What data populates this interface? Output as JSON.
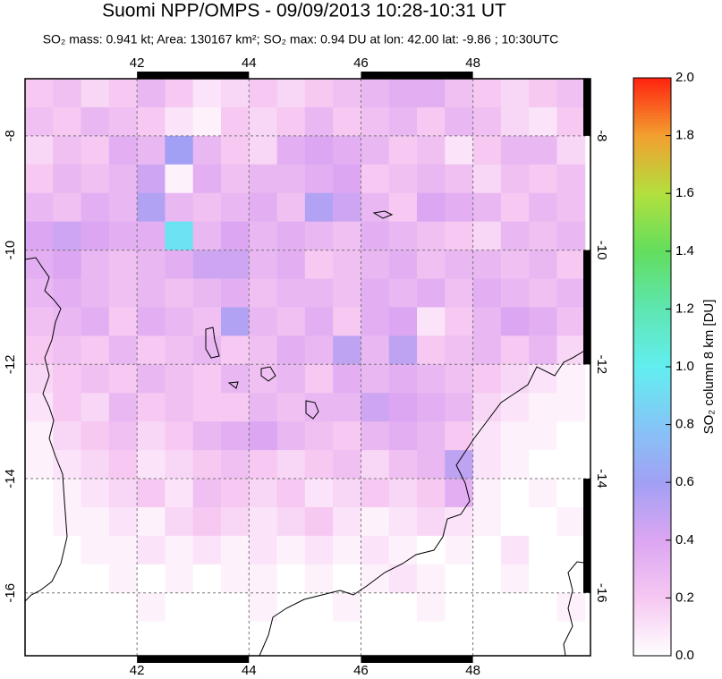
{
  "chart_data": {
    "type": "map",
    "title": "Suomi NPP/OMPS - 09/09/2013 10:28-10:31 UT",
    "subtitle": "SO₂ mass: 0.941 kt; Area: 130167 km²; SO₂ max: 0.94 DU at lon: 42.00 lat: -9.86 ; 10:30UTC",
    "colorbar_label": "SO₂ column 8 km [DU]",
    "xlim": [
      40,
      50.1
    ],
    "ylim": [
      -17.1,
      -7
    ],
    "xticks": [
      42,
      44,
      46,
      48
    ],
    "yticks": [
      -8,
      -10,
      -12,
      -14,
      -16
    ],
    "grid": true,
    "clim": [
      0,
      2
    ],
    "cticks": [
      {
        "value": 0,
        "label": "0.0"
      },
      0.2,
      0.4,
      0.6,
      0.8,
      {
        "value": 1,
        "label": "1.0"
      },
      1.2,
      1.4,
      1.6,
      1.8,
      {
        "value": 2,
        "label": "2.0"
      }
    ],
    "colormap": [
      "#ffffff",
      "#f6c8f2",
      "#dca6f2",
      "#a2a0f4",
      "#84c6f6",
      "#62eef0",
      "#5ee6b2",
      "#62de5e",
      "#b2e03e",
      "#f2a030",
      "#ff2410"
    ],
    "lons": [
      40.25,
      40.75,
      41.25,
      41.75,
      42.25,
      42.75,
      43.25,
      43.75,
      44.25,
      44.75,
      45.25,
      45.75,
      46.25,
      46.75,
      47.25,
      47.75,
      48.25,
      48.75,
      49.25,
      49.75
    ],
    "lats": [
      -7.25,
      -7.75,
      -8.25,
      -8.75,
      -9.25,
      -9.75,
      -10.25,
      -10.75,
      -11.25,
      -11.75,
      -12.25,
      -12.75,
      -13.25,
      -13.75,
      -14.25,
      -14.75,
      -15.25,
      -15.75,
      -16.25,
      -16.75
    ],
    "values": [
      [
        0.2,
        0.25,
        0.15,
        0.2,
        0.3,
        0.2,
        0.1,
        0.15,
        0.2,
        0.15,
        0.2,
        0.25,
        0.3,
        0.35,
        0.35,
        0.25,
        0.2,
        0.15,
        0.2,
        0.25
      ],
      [
        0.25,
        0.2,
        0.3,
        0.25,
        0.2,
        0.1,
        0.05,
        0.2,
        0.15,
        0.2,
        0.3,
        0.2,
        0.25,
        0.3,
        0.2,
        0.3,
        0.25,
        0.15,
        0.1,
        0.2
      ],
      [
        0.15,
        0.25,
        0.2,
        0.35,
        0.3,
        0.6,
        0.3,
        0.2,
        0.15,
        0.35,
        0.4,
        0.35,
        0.3,
        0.2,
        0.25,
        0.1,
        0.2,
        0.3,
        0.3,
        0.15
      ],
      [
        0.2,
        0.3,
        0.25,
        0.3,
        0.45,
        0.05,
        0.35,
        0.25,
        0.3,
        0.3,
        0.35,
        0.4,
        0.2,
        0.25,
        0.3,
        0.25,
        0.15,
        0.25,
        0.2,
        0.25
      ],
      [
        0.3,
        0.25,
        0.35,
        0.3,
        0.55,
        0.3,
        0.25,
        0.3,
        0.35,
        0.25,
        0.55,
        0.45,
        0.3,
        0.2,
        0.4,
        0.35,
        0.3,
        0.2,
        0.3,
        0.25
      ],
      [
        0.4,
        0.45,
        0.4,
        0.35,
        0.35,
        0.94,
        0.3,
        0.4,
        0.3,
        0.35,
        0.3,
        0.25,
        0.35,
        0.3,
        0.25,
        0.2,
        0.15,
        0.3,
        0.25,
        0.3
      ],
      [
        0.35,
        0.4,
        0.3,
        0.25,
        0.3,
        0.35,
        0.45,
        0.45,
        0.3,
        0.35,
        0.2,
        0.25,
        0.3,
        0.35,
        0.25,
        0.3,
        0.3,
        0.25,
        0.3,
        0.2
      ],
      [
        0.3,
        0.35,
        0.3,
        0.25,
        0.3,
        0.25,
        0.3,
        0.35,
        0.25,
        0.3,
        0.3,
        0.25,
        0.35,
        0.3,
        0.35,
        0.25,
        0.35,
        0.3,
        0.25,
        0.3
      ],
      [
        0.25,
        0.3,
        0.35,
        0.2,
        0.35,
        0.3,
        0.25,
        0.55,
        0.3,
        0.25,
        0.35,
        0.2,
        0.35,
        0.4,
        0.1,
        0.2,
        0.3,
        0.4,
        0.35,
        0.25
      ],
      [
        0.2,
        0.25,
        0.2,
        0.3,
        0.2,
        0.25,
        0.3,
        0.2,
        0.25,
        0.35,
        0.3,
        0.5,
        0.3,
        0.5,
        0.2,
        0.25,
        0.3,
        0.2,
        0.3,
        0.15
      ],
      [
        0.15,
        0.2,
        0.25,
        0.2,
        0.3,
        0.25,
        0.2,
        0.3,
        0.25,
        0.3,
        0.2,
        0.35,
        0.3,
        0.35,
        0.3,
        0.25,
        0.2,
        0.15,
        0.1,
        0.05
      ],
      [
        0.1,
        0.2,
        0.15,
        0.3,
        0.2,
        0.25,
        0.2,
        0.2,
        0.3,
        0.25,
        0.3,
        0.3,
        0.45,
        0.4,
        0.35,
        0.3,
        0.15,
        0.1,
        0.05,
        0.05
      ],
      [
        0.05,
        0.15,
        0.2,
        0.25,
        0.15,
        0.2,
        0.3,
        0.35,
        0.4,
        0.3,
        0.25,
        0.2,
        0.3,
        0.35,
        0.3,
        0.2,
        0.1,
        0.05,
        0.05,
        0
      ],
      [
        0.05,
        0.1,
        0.15,
        0.2,
        0.1,
        0.15,
        0.2,
        0.25,
        0.2,
        0.15,
        0.2,
        0.25,
        0.15,
        0.25,
        0.3,
        0.5,
        0.1,
        0.05,
        0,
        0
      ],
      [
        0,
        0.05,
        0.1,
        0.15,
        0.2,
        0.1,
        0.25,
        0.2,
        0.15,
        0.2,
        0.1,
        0.15,
        0.2,
        0.15,
        0.2,
        0.35,
        0.05,
        0,
        0.05,
        0
      ],
      [
        0,
        0.05,
        0.05,
        0.1,
        0.05,
        0.15,
        0.2,
        0.15,
        0.1,
        0.15,
        0.2,
        0.1,
        0.05,
        0.1,
        0.15,
        0.1,
        0.05,
        0,
        0,
        0.05
      ],
      [
        0,
        0,
        0.05,
        0.05,
        0.1,
        0.05,
        0.1,
        0.05,
        0.1,
        0.05,
        0.1,
        0.05,
        0.1,
        0.05,
        0,
        0.05,
        0,
        0.1,
        0,
        0
      ],
      [
        0,
        0,
        0,
        0.05,
        0,
        0.05,
        0,
        0.05,
        0.05,
        0,
        0.05,
        0,
        0.05,
        0.1,
        0.05,
        0,
        0,
        0.05,
        0,
        0
      ],
      [
        0,
        0,
        0,
        0,
        0.05,
        0,
        0,
        0,
        0.05,
        0,
        0,
        0.05,
        0,
        0,
        0.05,
        0,
        0,
        0,
        0,
        0.05
      ],
      [
        0,
        0,
        0,
        0,
        0,
        0,
        0,
        0,
        0,
        0,
        0,
        0,
        0,
        0,
        0,
        0,
        0,
        0,
        0,
        0
      ]
    ]
  }
}
